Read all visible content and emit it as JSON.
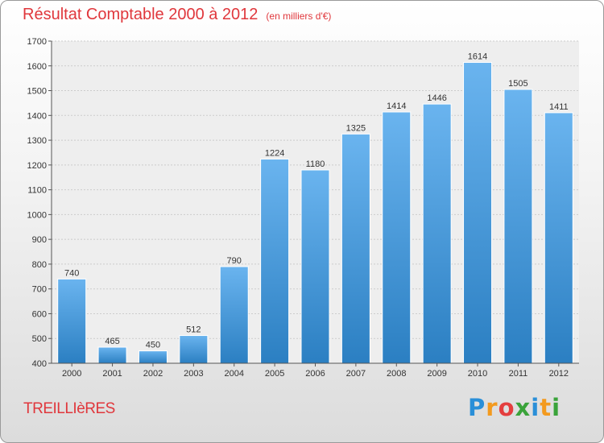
{
  "chart_data": {
    "type": "bar",
    "title": "Résultat Comptable 2000 à 2012",
    "subtitle": "(en milliers d'€)",
    "xlabel": "",
    "ylabel": "",
    "categories": [
      "2000",
      "2001",
      "2002",
      "2003",
      "2004",
      "2005",
      "2006",
      "2007",
      "2008",
      "2009",
      "2010",
      "2011",
      "2012"
    ],
    "values": [
      740,
      465,
      450,
      512,
      790,
      1224,
      1180,
      1325,
      1414,
      1446,
      1614,
      1505,
      1411
    ],
    "ylim": [
      400,
      1700
    ],
    "yticks": [
      400,
      500,
      600,
      700,
      800,
      900,
      1000,
      1100,
      1200,
      1300,
      1400,
      1500,
      1600,
      1700
    ],
    "grid": true,
    "legend": "none"
  },
  "footer": {
    "commune": "TREILLIèRES",
    "logo_letters": [
      "P",
      "r",
      "o",
      "x",
      "i",
      "t",
      "i"
    ],
    "logo_colors": [
      "#2a8fd8",
      "#f39a1e",
      "#e43e3e",
      "#3aa33a",
      "#2a8fd8",
      "#f39a1e",
      "#3aa33a"
    ]
  },
  "colors": {
    "bar_light": "#6ab4ef",
    "bar_dark": "#2b7fc2",
    "title": "#e0373c"
  }
}
